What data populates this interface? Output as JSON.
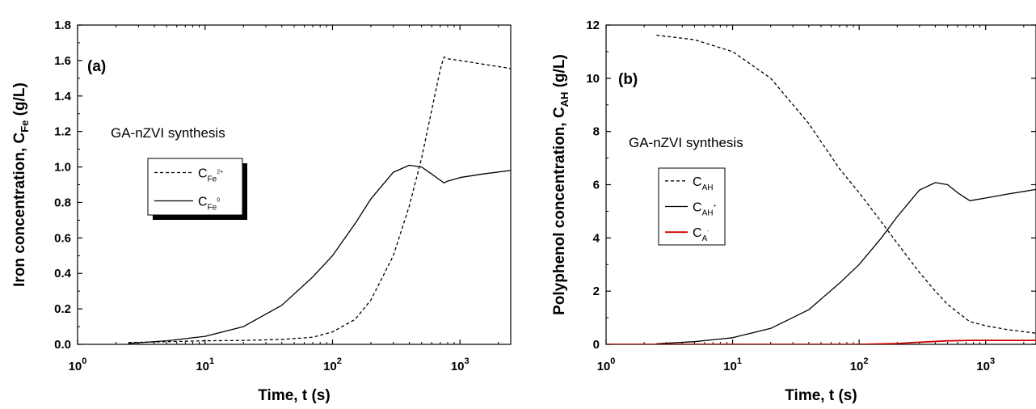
{
  "chart_data": [
    {
      "type": "line",
      "panel_label": "(a)",
      "annotation": "GA-nZVI synthesis",
      "xlabel": "Time, t (s)",
      "ylabel": {
        "main": "Iron concentration, C",
        "sub": "Fe",
        "unit": " (g/L)"
      },
      "xscale": "log",
      "xlim": [
        1,
        2500
      ],
      "ylim": [
        0,
        1.8
      ],
      "xticks": [
        {
          "base": "10",
          "exp": "0",
          "value": 1
        },
        {
          "base": "10",
          "exp": "1",
          "value": 10
        },
        {
          "base": "10",
          "exp": "2",
          "value": 100
        },
        {
          "base": "10",
          "exp": "3",
          "value": 1000
        }
      ],
      "yticks": [
        "0.0",
        "0.2",
        "0.4",
        "0.6",
        "0.8",
        "1.0",
        "1.2",
        "1.4",
        "1.6",
        "1.8"
      ],
      "legend_position": "center-left",
      "series": [
        {
          "label_main": "C",
          "label_sub": "Fe",
          "label_sup": "2+",
          "style": "dashed",
          "color": "#000000",
          "x": [
            2.5,
            5,
            10,
            20,
            40,
            70,
            100,
            150,
            200,
            300,
            400,
            500,
            600,
            700,
            750,
            800,
            1000,
            1500,
            2500
          ],
          "y": [
            0.01,
            0.015,
            0.02,
            0.022,
            0.028,
            0.04,
            0.07,
            0.14,
            0.25,
            0.5,
            0.78,
            1.05,
            1.32,
            1.55,
            1.62,
            1.61,
            1.6,
            1.58,
            1.555
          ]
        },
        {
          "label_main": "C",
          "label_sub": "Fe",
          "label_sup": "0",
          "style": "solid",
          "color": "#000000",
          "x": [
            2.5,
            5,
            10,
            20,
            40,
            70,
            100,
            150,
            200,
            300,
            400,
            500,
            600,
            700,
            750,
            800,
            1000,
            1500,
            2500
          ],
          "y": [
            0.005,
            0.02,
            0.045,
            0.1,
            0.22,
            0.38,
            0.5,
            0.68,
            0.82,
            0.97,
            1.01,
            1.0,
            0.96,
            0.925,
            0.91,
            0.92,
            0.94,
            0.96,
            0.98
          ]
        }
      ]
    },
    {
      "type": "line",
      "panel_label": "(b)",
      "annotation": "GA-nZVI synthesis",
      "xlabel": "Time, t (s)",
      "ylabel": {
        "main": "Polyphenol concentration, C",
        "sub": "AH",
        "unit": " (g/L)"
      },
      "xscale": "log",
      "xlim": [
        1,
        2500
      ],
      "ylim": [
        0,
        12
      ],
      "xticks": [
        {
          "base": "10",
          "exp": "0",
          "value": 1
        },
        {
          "base": "10",
          "exp": "1",
          "value": 10
        },
        {
          "base": "10",
          "exp": "2",
          "value": 100
        },
        {
          "base": "10",
          "exp": "3",
          "value": 1000
        }
      ],
      "yticks": [
        "0",
        "2",
        "4",
        "6",
        "8",
        "10",
        "12"
      ],
      "legend_position": "center-left",
      "series": [
        {
          "label_main": "C",
          "label_sub": "AH",
          "label_sup": "",
          "style": "dashed",
          "color": "#000000",
          "x": [
            2.5,
            5,
            10,
            20,
            40,
            70,
            100,
            150,
            200,
            300,
            400,
            500,
            750,
            1000,
            1500,
            2500
          ],
          "y": [
            11.62,
            11.45,
            11.0,
            10.0,
            8.3,
            6.6,
            5.7,
            4.6,
            3.8,
            2.7,
            2.0,
            1.5,
            0.85,
            0.7,
            0.55,
            0.42
          ]
        },
        {
          "label_main": "C",
          "label_sub": "AH",
          "label_sup": "+",
          "style": "solid",
          "color": "#000000",
          "x": [
            2.5,
            5,
            10,
            20,
            40,
            70,
            100,
            150,
            200,
            300,
            400,
            500,
            600,
            750,
            1000,
            1500,
            2500
          ],
          "y": [
            0.02,
            0.1,
            0.25,
            0.6,
            1.3,
            2.3,
            3.0,
            4.0,
            4.8,
            5.8,
            6.08,
            6.0,
            5.7,
            5.4,
            5.5,
            5.65,
            5.82
          ]
        },
        {
          "label_main": "C",
          "label_sub": "A",
          "label_sup": "-",
          "style": "solid",
          "color": "#cc0000",
          "x": [
            1,
            10,
            100,
            200,
            300,
            500,
            750,
            1000,
            2500
          ],
          "y": [
            0,
            0,
            0,
            0.03,
            0.08,
            0.13,
            0.15,
            0.15,
            0.15
          ]
        }
      ]
    }
  ]
}
